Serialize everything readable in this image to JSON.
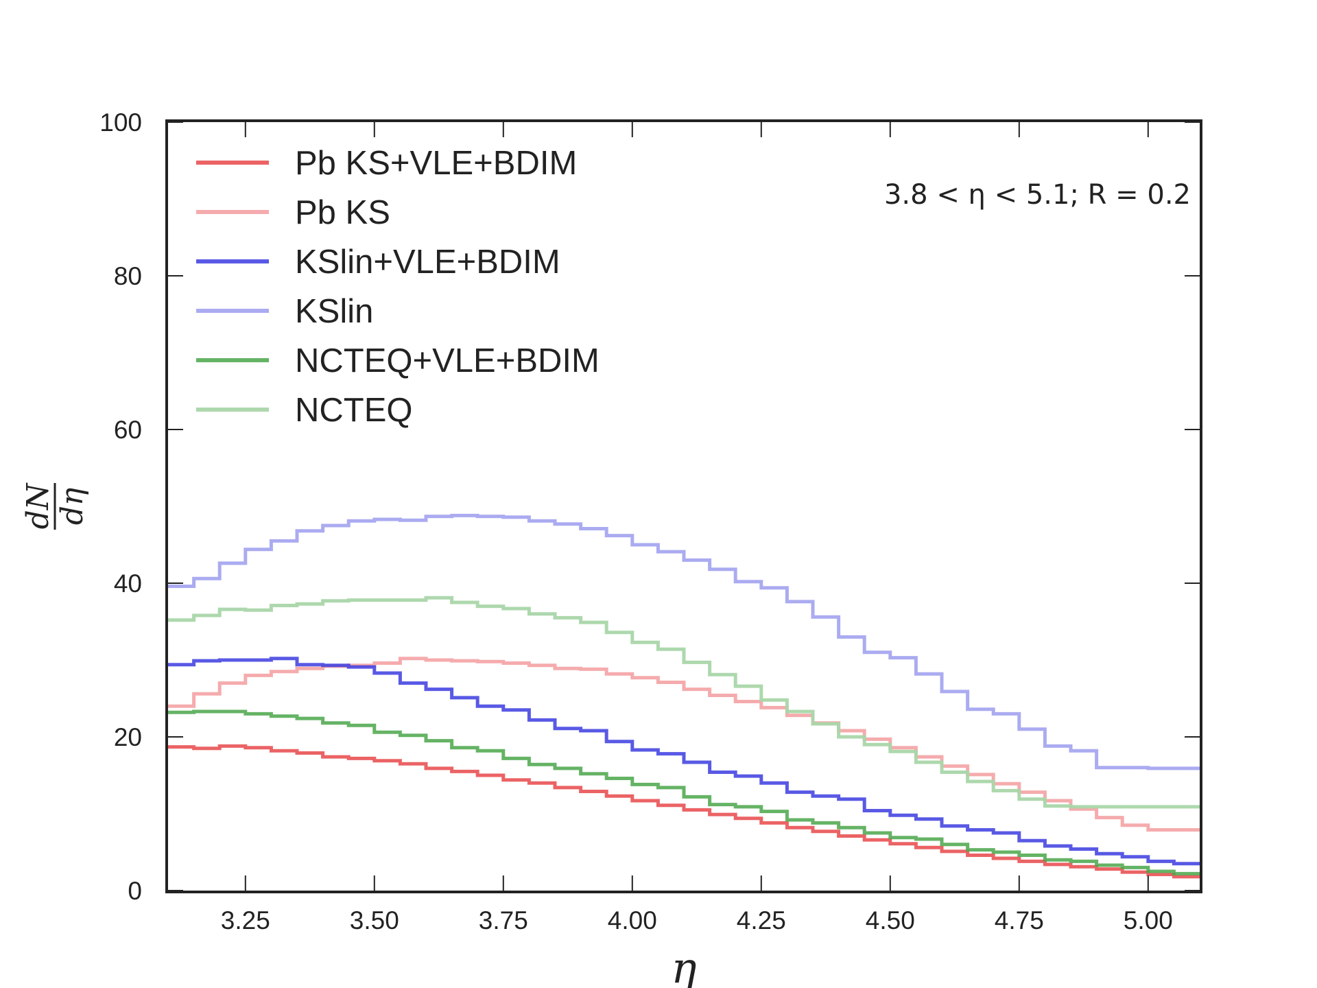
{
  "chart_data": {
    "type": "line",
    "step": true,
    "xlabel": "η",
    "ylabel": {
      "numerator": "dN",
      "denominator": "dη"
    },
    "xlim": [
      3.1,
      5.1
    ],
    "ylim": [
      0,
      100
    ],
    "xticks": [
      "3.25",
      "3.50",
      "3.75",
      "4.00",
      "4.25",
      "4.50",
      "4.75",
      "5.00"
    ],
    "yticks": [
      "0",
      "20",
      "40",
      "60",
      "80",
      "100"
    ],
    "annotation": "3.8 < η < 5.1; R = 0.2",
    "legend_position": "top-left",
    "grid": false,
    "bin_edges": [
      3.1,
      3.15,
      3.2,
      3.25,
      3.3,
      3.35,
      3.4,
      3.45,
      3.5,
      3.55,
      3.6,
      3.65,
      3.7,
      3.75,
      3.8,
      3.85,
      3.9,
      3.95,
      4.0,
      4.05,
      4.1,
      4.15,
      4.2,
      4.25,
      4.3,
      4.35,
      4.4,
      4.45,
      4.5,
      4.55,
      4.6,
      4.65,
      4.7,
      4.75,
      4.8,
      4.85,
      4.9,
      4.95,
      5.0,
      5.05,
      5.1
    ],
    "series": [
      {
        "name": "Pb KS+VLE+BDIM",
        "color": "#e8484a",
        "opacity": 0.85,
        "values": [
          18.7,
          18.5,
          18.8,
          18.6,
          18.2,
          17.9,
          17.4,
          17.2,
          16.9,
          16.5,
          15.9,
          15.5,
          15.0,
          14.4,
          14.0,
          13.4,
          12.9,
          12.3,
          11.7,
          11.1,
          10.5,
          9.9,
          9.4,
          8.8,
          8.2,
          7.7,
          7.1,
          6.6,
          6.1,
          5.6,
          5.1,
          4.6,
          4.2,
          3.8,
          3.4,
          3.1,
          2.8,
          2.4,
          2.1,
          1.8
        ]
      },
      {
        "name": "Pb KS",
        "color": "#f4a2a4",
        "opacity": 0.9,
        "values": [
          24.0,
          25.6,
          27.0,
          28.0,
          28.5,
          28.9,
          29.2,
          29.3,
          29.6,
          30.2,
          30.0,
          29.9,
          29.8,
          29.6,
          29.3,
          28.9,
          28.8,
          28.2,
          27.7,
          27.1,
          26.2,
          25.4,
          24.6,
          23.8,
          22.8,
          21.8,
          20.8,
          19.7,
          18.6,
          17.4,
          16.2,
          15.1,
          13.9,
          12.8,
          11.7,
          10.6,
          9.5,
          8.5,
          7.9,
          7.9
        ]
      },
      {
        "name": "KSlin+VLE+BDIM",
        "color": "#3c3ce0",
        "opacity": 0.85,
        "values": [
          29.4,
          29.9,
          30.0,
          30.0,
          30.2,
          29.4,
          29.3,
          29.1,
          28.3,
          27.0,
          26.2,
          25.1,
          24.0,
          23.5,
          22.2,
          21.1,
          20.8,
          19.4,
          18.3,
          17.8,
          16.7,
          15.4,
          14.9,
          14.0,
          12.8,
          12.3,
          11.9,
          10.4,
          9.8,
          9.3,
          8.4,
          7.9,
          7.5,
          6.5,
          5.8,
          5.4,
          4.8,
          4.4,
          3.8,
          3.5
        ]
      },
      {
        "name": "KSlin",
        "color": "#a6a6f0",
        "opacity": 0.95,
        "values": [
          39.6,
          40.6,
          42.6,
          44.4,
          45.5,
          46.8,
          47.5,
          48.1,
          48.3,
          48.2,
          48.7,
          48.8,
          48.7,
          48.6,
          48.1,
          47.7,
          47.1,
          46.2,
          45.0,
          44.1,
          43.0,
          41.8,
          40.2,
          39.4,
          37.6,
          35.6,
          33.0,
          31.0,
          30.3,
          28.2,
          25.9,
          23.6,
          23.0,
          21.0,
          18.8,
          18.2,
          16.0,
          16.0,
          15.9,
          15.9
        ]
      },
      {
        "name": "NCTEQ+VLE+BDIM",
        "color": "#4aa64a",
        "opacity": 0.85,
        "values": [
          23.2,
          23.3,
          23.3,
          23.0,
          22.7,
          22.4,
          21.8,
          21.5,
          20.6,
          20.2,
          19.5,
          18.6,
          18.2,
          17.2,
          16.4,
          15.9,
          15.2,
          14.6,
          13.8,
          13.4,
          12.2,
          11.2,
          10.9,
          10.3,
          9.2,
          8.8,
          8.2,
          7.5,
          6.9,
          6.7,
          6.0,
          5.3,
          5.0,
          4.6,
          4.0,
          3.8,
          3.3,
          3.0,
          2.5,
          2.2
        ]
      },
      {
        "name": "NCTEQ",
        "color": "#a9d6a9",
        "opacity": 0.95,
        "values": [
          35.2,
          35.8,
          36.6,
          36.5,
          37.1,
          37.3,
          37.7,
          37.8,
          37.8,
          37.8,
          38.1,
          37.5,
          37.0,
          36.7,
          36.0,
          35.5,
          34.9,
          33.6,
          32.3,
          31.4,
          29.7,
          28.1,
          26.6,
          24.8,
          23.3,
          21.7,
          20.0,
          19.0,
          18.1,
          16.7,
          15.4,
          14.2,
          13.0,
          11.9,
          11.0,
          10.9,
          10.9,
          10.9,
          10.9,
          10.9
        ]
      }
    ]
  }
}
